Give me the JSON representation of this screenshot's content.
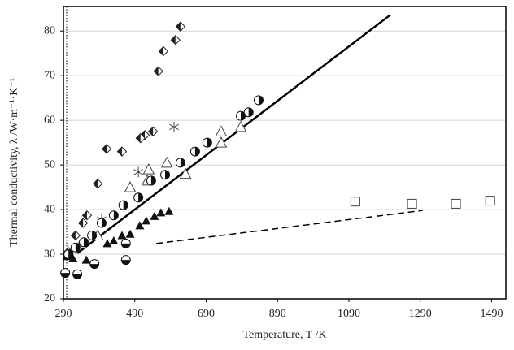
{
  "chart_data": {
    "type": "scatter",
    "xlabel": "Temperature, T /K",
    "ylabel": "Thermal conductivity, λ /W·m⁻¹·K⁻¹",
    "xlim": [
      290,
      1530
    ],
    "ylim": [
      20,
      85.5
    ],
    "xticks": [
      290,
      490,
      690,
      890,
      1090,
      1290,
      1490
    ],
    "yticks": [
      20,
      30,
      40,
      50,
      60,
      70,
      80
    ],
    "grid": true,
    "series": [
      {
        "marker": "half-diamond",
        "color": "#222222",
        "x": [
          618,
          604,
          570,
          556,
          541,
          518,
          506,
          411,
          454,
          386,
          356,
          345,
          324,
          304
        ],
        "y": [
          81,
          78,
          75.5,
          71,
          57.5,
          56.7,
          56,
          53.6,
          53,
          45.8,
          38.7,
          37,
          34.2,
          30.5
        ]
      },
      {
        "marker": "asterisk",
        "color": "#444444",
        "x": [
          600,
          500,
          397
        ],
        "y": [
          58.5,
          48.4,
          37.8
        ]
      },
      {
        "marker": "triangle-open",
        "color": "#444444",
        "x": [
          787,
          732,
          732,
          632,
          580,
          529,
          477,
          525,
          386,
          340
        ],
        "y": [
          58.5,
          57.5,
          55,
          48,
          50.5,
          49,
          45,
          46.5,
          34.2,
          32.4
        ]
      },
      {
        "marker": "triangle-filled",
        "color": "#111111",
        "x": [
          586,
          563,
          545,
          522,
          504,
          477,
          454,
          431,
          413,
          354,
          317,
          299
        ],
        "y": [
          39.6,
          39.3,
          38.5,
          37.5,
          36.4,
          34.5,
          34.2,
          33,
          32.4,
          28.7,
          29,
          29.5
        ]
      },
      {
        "marker": "half-circle",
        "color": "#111111",
        "x": [
          837,
          809,
          787,
          693,
          659,
          618,
          575,
          536,
          500,
          458,
          431,
          397,
          370,
          347,
          324,
          304
        ],
        "y": [
          64.5,
          61.8,
          61,
          55,
          53,
          50.5,
          47.8,
          46.5,
          42.7,
          41,
          38.7,
          37,
          34.2,
          32.7,
          31.5,
          30
        ]
      },
      {
        "marker": "half-circle-h",
        "color": "#111111",
        "x": [
          465,
          465,
          377,
          329,
          295
        ],
        "y": [
          28.7,
          32.4,
          27.8,
          25.5,
          25.8
        ]
      },
      {
        "marker": "square-open",
        "color": "#444444",
        "x": [
          1108,
          1267,
          1390,
          1486
        ],
        "y": [
          41.8,
          41.3,
          41.3,
          42
        ]
      }
    ],
    "lines": [
      {
        "x": [
          329,
          1206
        ],
        "y": [
          30.2,
          83.6
        ],
        "dashed": false,
        "color": "#000000"
      },
      {
        "x": [
          550,
          1297
        ],
        "y": [
          32.4,
          39.8
        ],
        "dashed": true,
        "color": "#000000"
      }
    ]
  }
}
